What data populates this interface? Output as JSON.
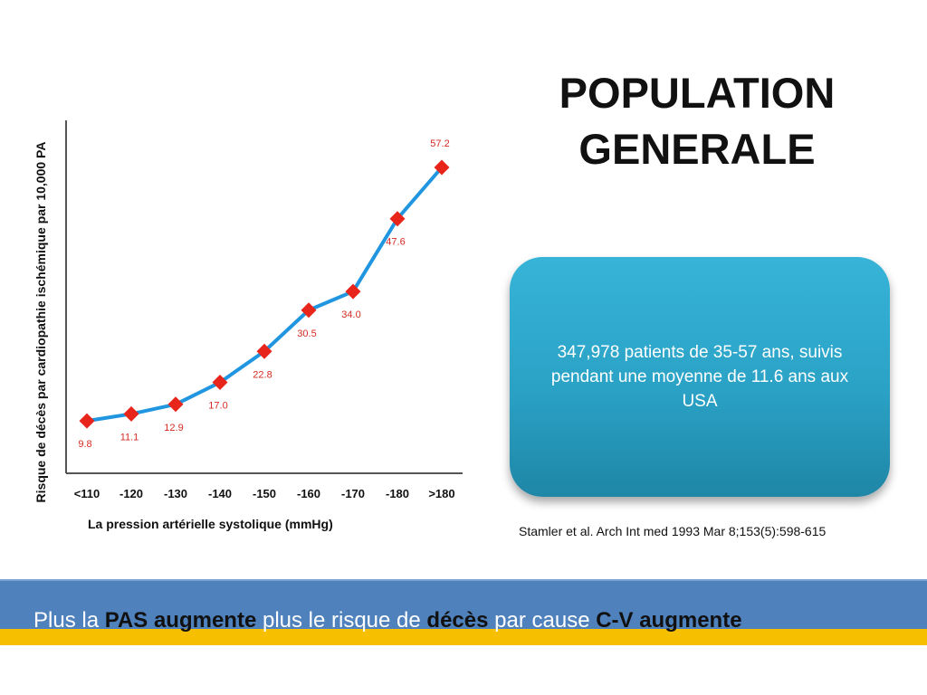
{
  "slide": {
    "title_line1": "POPULATION",
    "title_line2": "GENERALE"
  },
  "info_box": {
    "text": "347,978  patients de 35-57 ans, suivis pendant une moyenne de 11.6 ans aux USA"
  },
  "citation": "Stamler et al. Arch Int med 1993 Mar 8;153(5):598-615",
  "footer": {
    "p1": "Plus la ",
    "b1": "PAS augmente",
    "p2": " plus le risque de ",
    "b2": "décès",
    "p3": " par cause ",
    "b3": "C-V augmente"
  },
  "colors": {
    "line": "#2196e0",
    "marker": "#e8251b",
    "label": "#d62a22",
    "box": "#2aa2c6",
    "band": "#4f81bd",
    "stripe": "#f6c000"
  },
  "chart_data": {
    "type": "line",
    "categories": [
      "<110",
      "-120",
      "-130",
      "-140",
      "-150",
      "-160",
      "-170",
      "-180",
      ">180"
    ],
    "values": [
      9.8,
      11.1,
      12.9,
      17.0,
      22.8,
      30.5,
      34.0,
      47.6,
      57.2
    ],
    "labels": [
      "9.8",
      "11.1",
      "12.9",
      "17.0",
      "22.8",
      "30.5",
      "34.0",
      "47.6",
      "57.2"
    ],
    "ylabel": "Risque  de décès par cardiopathie ischémique  par 10,000 PA",
    "xlabel": "La pression artérielle systolique (mmHg)",
    "label_position": [
      "below",
      "below",
      "below",
      "below",
      "below",
      "below",
      "below",
      "below",
      "above"
    ],
    "ylim": [
      0,
      66
    ],
    "grid": false,
    "legend": "none"
  }
}
